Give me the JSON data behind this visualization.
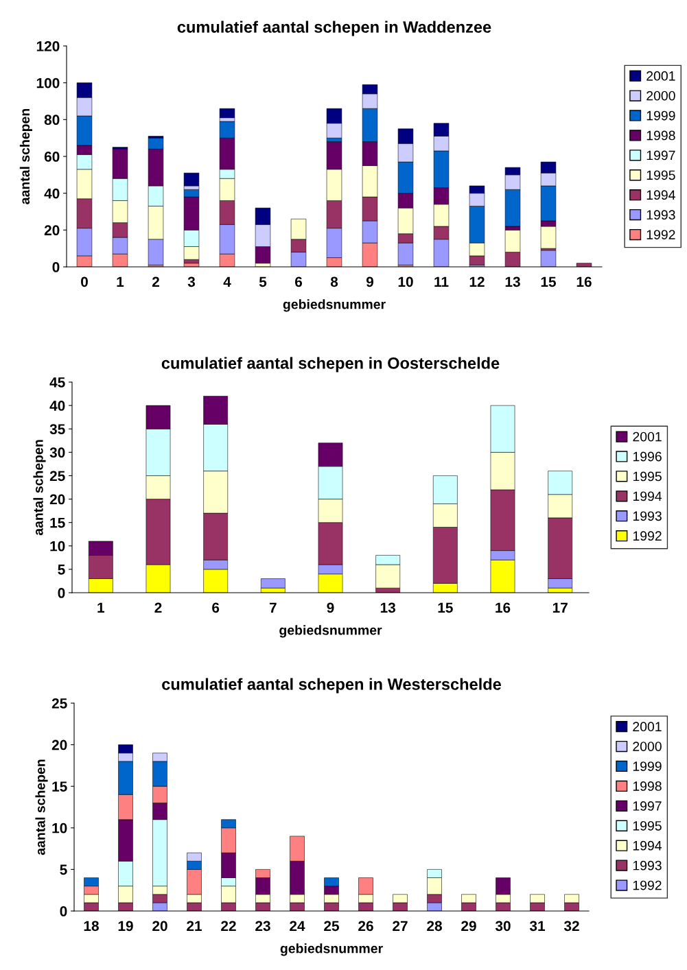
{
  "chart_data": [
    {
      "type": "bar",
      "stacked": true,
      "title": "cumulatief aantal schepen in Waddenzee",
      "xlabel": "gebiedsnummer",
      "ylabel": "aantal schepen",
      "categories": [
        "0",
        "1",
        "2",
        "3",
        "4",
        "5",
        "6",
        "8",
        "9",
        "10",
        "11",
        "12",
        "13",
        "15",
        "16"
      ],
      "ylim": [
        0,
        120
      ],
      "yticks": [
        0,
        20,
        40,
        60,
        80,
        100,
        120
      ],
      "legend": "right",
      "grid": false,
      "series": [
        {
          "name": "1992",
          "color": "#ff8080",
          "values": [
            6,
            7,
            1,
            2,
            7,
            null,
            null,
            5,
            13,
            1,
            null,
            null,
            null,
            null,
            null
          ]
        },
        {
          "name": "1993",
          "color": "#9999ff",
          "values": [
            15,
            9,
            14,
            null,
            16,
            null,
            8,
            16,
            12,
            12,
            15,
            1,
            null,
            9,
            null
          ]
        },
        {
          "name": "1994",
          "color": "#993366",
          "values": [
            16,
            8,
            null,
            2,
            13,
            null,
            7,
            15,
            13,
            5,
            7,
            5,
            8,
            1,
            2
          ]
        },
        {
          "name": "1995",
          "color": "#ffffcc",
          "values": [
            16,
            12,
            18,
            7,
            12,
            2,
            11,
            17,
            17,
            14,
            12,
            7,
            12,
            12,
            null
          ]
        },
        {
          "name": "1997",
          "color": "#ccffff",
          "values": [
            8,
            12,
            11,
            9,
            5,
            null,
            null,
            null,
            null,
            null,
            null,
            null,
            null,
            null,
            null
          ]
        },
        {
          "name": "1998",
          "color": "#660066",
          "values": [
            5,
            16,
            20,
            18,
            17,
            9,
            null,
            15,
            13,
            8,
            9,
            null,
            2,
            3,
            null
          ]
        },
        {
          "name": "1999",
          "color": "#0066cc",
          "values": [
            16,
            null,
            6,
            4,
            9,
            null,
            null,
            2,
            18,
            17,
            20,
            20,
            20,
            19,
            null
          ]
        },
        {
          "name": "2000",
          "color": "#ccccff",
          "values": [
            10,
            null,
            null,
            2,
            2,
            12,
            null,
            8,
            8,
            10,
            8,
            7,
            8,
            7,
            null
          ]
        },
        {
          "name": "2001",
          "color": "#000080",
          "values": [
            8,
            1,
            1,
            7,
            5,
            9,
            null,
            8,
            5,
            8,
            7,
            4,
            4,
            6,
            null
          ]
        }
      ]
    },
    {
      "type": "bar",
      "stacked": true,
      "title": "cumulatief aantal schepen in Oosterschelde",
      "xlabel": "gebiedsnummer",
      "ylabel": "aantal schepen",
      "categories": [
        "1",
        "2",
        "6",
        "7",
        "9",
        "13",
        "15",
        "16",
        "17"
      ],
      "ylim": [
        0,
        45
      ],
      "yticks": [
        0,
        5,
        10,
        15,
        20,
        25,
        30,
        35,
        40,
        45
      ],
      "legend": "right",
      "grid": false,
      "series": [
        {
          "name": "1992",
          "color": "#ffff00",
          "values": [
            3,
            6,
            5,
            1,
            4,
            null,
            2,
            7,
            1
          ]
        },
        {
          "name": "1993",
          "color": "#9999ff",
          "values": [
            null,
            null,
            2,
            2,
            2,
            null,
            null,
            2,
            2
          ]
        },
        {
          "name": "1994",
          "color": "#993366",
          "values": [
            5,
            14,
            10,
            null,
            9,
            1,
            12,
            13,
            13
          ]
        },
        {
          "name": "1995",
          "color": "#ffffcc",
          "values": [
            null,
            5,
            9,
            null,
            5,
            5,
            5,
            8,
            5
          ]
        },
        {
          "name": "1996",
          "color": "#ccffff",
          "values": [
            null,
            10,
            10,
            null,
            7,
            2,
            6,
            10,
            5
          ]
        },
        {
          "name": "2001",
          "color": "#660066",
          "values": [
            3,
            5,
            6,
            null,
            5,
            null,
            null,
            null,
            null
          ]
        }
      ]
    },
    {
      "type": "bar",
      "stacked": true,
      "title": "cumulatief aantal schepen in Westerschelde",
      "xlabel": "gebiedsnummer",
      "ylabel": "aantal schepen",
      "categories": [
        "18",
        "19",
        "20",
        "21",
        "22",
        "23",
        "24",
        "25",
        "26",
        "27",
        "28",
        "29",
        "30",
        "31",
        "32"
      ],
      "ylim": [
        0,
        25
      ],
      "yticks": [
        0,
        5,
        10,
        15,
        20,
        25
      ],
      "legend": "right",
      "grid": false,
      "series": [
        {
          "name": "1992",
          "color": "#9999ff",
          "values": [
            null,
            null,
            1,
            null,
            null,
            null,
            null,
            null,
            null,
            null,
            1,
            null,
            null,
            null,
            null
          ]
        },
        {
          "name": "1993",
          "color": "#993366",
          "values": [
            1,
            1,
            1,
            1,
            1,
            1,
            1,
            1,
            1,
            1,
            1,
            1,
            1,
            1,
            1
          ]
        },
        {
          "name": "1994",
          "color": "#ffffcc",
          "values": [
            1,
            2,
            1,
            1,
            2,
            1,
            1,
            1,
            1,
            1,
            2,
            1,
            1,
            1,
            1
          ]
        },
        {
          "name": "1995",
          "color": "#ccffff",
          "values": [
            null,
            3,
            8,
            null,
            1,
            null,
            null,
            null,
            null,
            null,
            1,
            null,
            null,
            null,
            null
          ]
        },
        {
          "name": "1997",
          "color": "#660066",
          "values": [
            null,
            5,
            2,
            null,
            3,
            2,
            4,
            1,
            null,
            null,
            null,
            null,
            2,
            null,
            null
          ]
        },
        {
          "name": "1998",
          "color": "#ff8080",
          "values": [
            1,
            3,
            2,
            3,
            3,
            1,
            3,
            null,
            2,
            null,
            null,
            null,
            null,
            null,
            null
          ]
        },
        {
          "name": "1999",
          "color": "#0066cc",
          "values": [
            1,
            4,
            3,
            1,
            1,
            null,
            null,
            1,
            null,
            null,
            null,
            null,
            null,
            null,
            null
          ]
        },
        {
          "name": "2000",
          "color": "#ccccff",
          "values": [
            null,
            1,
            1,
            1,
            null,
            null,
            null,
            null,
            null,
            null,
            null,
            null,
            null,
            null,
            null
          ]
        },
        {
          "name": "2001",
          "color": "#000080",
          "values": [
            null,
            1,
            null,
            null,
            null,
            null,
            null,
            null,
            null,
            null,
            null,
            null,
            null,
            null,
            null
          ]
        }
      ]
    }
  ]
}
